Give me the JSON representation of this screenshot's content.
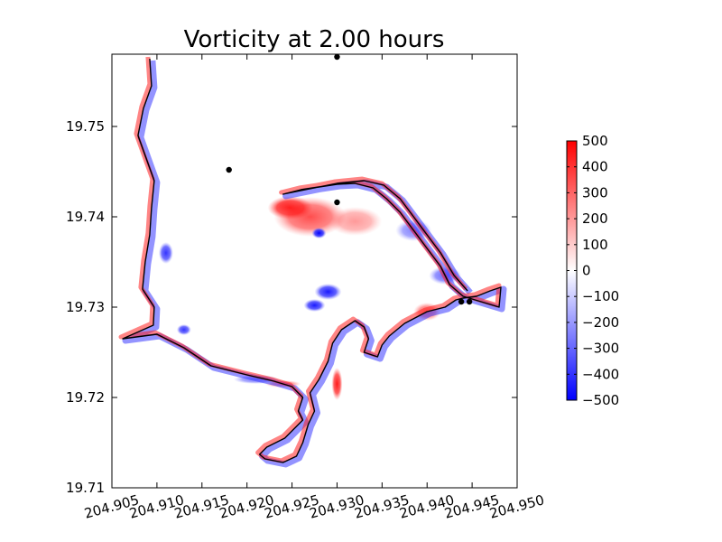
{
  "chart_data": {
    "type": "heatmap",
    "title": "Vorticity at 2.00 hours",
    "xlabel": "",
    "ylabel": "",
    "xlim": [
      204.905,
      204.95
    ],
    "ylim": [
      19.71,
      19.758
    ],
    "x_ticks": [
      204.905,
      204.91,
      204.915,
      204.92,
      204.925,
      204.93,
      204.935,
      204.94,
      204.945,
      204.95
    ],
    "x_tick_labels": [
      "204.905",
      "204.910",
      "204.915",
      "204.920",
      "204.925",
      "204.930",
      "204.935",
      "204.940",
      "204.945",
      "204.950"
    ],
    "y_ticks": [
      19.71,
      19.72,
      19.73,
      19.74,
      19.75
    ],
    "y_tick_labels": [
      "19.71",
      "19.72",
      "19.73",
      "19.74",
      "19.75"
    ],
    "grid": false,
    "colorbar": {
      "colormap": "bwr",
      "vmin": -500,
      "vmax": 500,
      "ticks": [
        500,
        400,
        300,
        200,
        100,
        0,
        -100,
        -200,
        -300,
        -400,
        -500
      ],
      "tick_labels": [
        "500",
        "400",
        "300",
        "200",
        "100",
        "0",
        "−100",
        "−200",
        "−300",
        "−400",
        "−500"
      ]
    },
    "gauge_points": [
      {
        "x": 204.93,
        "y": 19.7577
      },
      {
        "x": 204.918,
        "y": 19.7452
      },
      {
        "x": 204.93,
        "y": 19.7416
      },
      {
        "x": 204.9438,
        "y": 19.7306
      },
      {
        "x": 204.9447,
        "y": 19.7306
      }
    ],
    "shoreline": [
      [
        204.9092,
        19.7575
      ],
      [
        204.9094,
        19.7545
      ],
      [
        204.9085,
        19.752
      ],
      [
        204.9079,
        19.749
      ],
      [
        204.9088,
        19.7465
      ],
      [
        204.9097,
        19.744
      ],
      [
        204.9094,
        19.741
      ],
      [
        204.9092,
        19.738
      ],
      [
        204.9087,
        19.735
      ],
      [
        204.9084,
        19.732
      ],
      [
        204.9097,
        19.73
      ],
      [
        204.9096,
        19.728
      ],
      [
        204.9062,
        19.7265
      ],
      [
        204.91,
        19.727
      ],
      [
        204.913,
        19.7255
      ],
      [
        204.916,
        19.7235
      ],
      [
        204.92,
        19.7225
      ],
      [
        204.923,
        19.7218
      ],
      [
        204.925,
        19.7212
      ],
      [
        204.9262,
        19.72
      ],
      [
        204.9257,
        19.7185
      ],
      [
        204.9262,
        19.7175
      ],
      [
        204.9242,
        19.7155
      ],
      [
        204.9222,
        19.7145
      ],
      [
        204.9214,
        19.7137
      ],
      [
        204.922,
        19.7132
      ],
      [
        204.924,
        19.7128
      ],
      [
        204.9255,
        19.7135
      ],
      [
        204.9262,
        19.715
      ],
      [
        204.9268,
        19.717
      ],
      [
        204.9275,
        19.7185
      ],
      [
        204.927,
        19.7205
      ],
      [
        204.928,
        19.722
      ],
      [
        204.929,
        19.724
      ],
      [
        204.9295,
        19.726
      ],
      [
        204.9305,
        19.7275
      ],
      [
        204.932,
        19.7285
      ],
      [
        204.933,
        19.7278
      ],
      [
        204.9335,
        19.7265
      ],
      [
        204.933,
        19.725
      ],
      [
        204.9345,
        19.7245
      ],
      [
        204.935,
        19.7258
      ],
      [
        204.9358,
        19.7268
      ],
      [
        204.9375,
        19.7282
      ],
      [
        204.94,
        19.7295
      ],
      [
        204.942,
        19.73
      ],
      [
        204.9432,
        19.7308
      ],
      [
        204.944,
        19.731
      ],
      [
        204.9455,
        19.7312
      ],
      [
        204.947,
        19.7318
      ],
      [
        204.9482,
        19.7322
      ],
      [
        204.948,
        19.73
      ],
      [
        204.944,
        19.7312
      ],
      [
        204.9425,
        19.7325
      ],
      [
        204.9415,
        19.7345
      ],
      [
        204.94,
        19.7365
      ],
      [
        204.9385,
        19.7385
      ],
      [
        204.937,
        19.7405
      ],
      [
        204.9355,
        19.742
      ],
      [
        204.934,
        19.7432
      ],
      [
        204.932,
        19.7437
      ],
      [
        204.93,
        19.7436
      ],
      [
        204.928,
        19.7433
      ],
      [
        204.926,
        19.743
      ],
      [
        204.924,
        19.7425
      ],
      [
        204.9265,
        19.743
      ],
      [
        204.93,
        19.7437
      ],
      [
        204.933,
        19.744
      ],
      [
        204.9352,
        19.7435
      ],
      [
        204.937,
        19.742
      ],
      [
        204.9385,
        19.74
      ],
      [
        204.94,
        19.738
      ],
      [
        204.9415,
        19.736
      ],
      [
        204.943,
        19.7335
      ],
      [
        204.9445,
        19.7318
      ]
    ],
    "vorticity_features": [
      {
        "sign": "positive",
        "strength": 1.0,
        "cx": 204.9248,
        "cy": 19.741,
        "rx": 0.0025,
        "ry": 0.0013
      },
      {
        "sign": "positive",
        "strength": 0.7,
        "cx": 204.927,
        "cy": 19.74,
        "rx": 0.004,
        "ry": 0.0022
      },
      {
        "sign": "negative",
        "strength": 1.0,
        "cx": 204.928,
        "cy": 19.7382,
        "rx": 0.0008,
        "ry": 0.0006
      },
      {
        "sign": "negative",
        "strength": 0.9,
        "cx": 204.929,
        "cy": 19.7317,
        "rx": 0.0015,
        "ry": 0.0009
      },
      {
        "sign": "negative",
        "strength": 0.9,
        "cx": 204.9275,
        "cy": 19.7302,
        "rx": 0.0012,
        "ry": 0.0007
      },
      {
        "sign": "negative",
        "strength": 0.8,
        "cx": 204.911,
        "cy": 19.736,
        "rx": 0.0008,
        "ry": 0.0012
      },
      {
        "sign": "negative",
        "strength": 0.8,
        "cx": 204.913,
        "cy": 19.7275,
        "rx": 0.0008,
        "ry": 0.0006
      },
      {
        "sign": "positive",
        "strength": 0.9,
        "cx": 204.93,
        "cy": 19.7215,
        "rx": 0.0006,
        "ry": 0.0018
      },
      {
        "sign": "negative",
        "strength": 0.6,
        "cx": 204.942,
        "cy": 19.7335,
        "rx": 0.0018,
        "ry": 0.001
      },
      {
        "sign": "positive",
        "strength": 0.6,
        "cx": 204.94,
        "cy": 19.7295,
        "rx": 0.0015,
        "ry": 0.001
      },
      {
        "sign": "negative",
        "strength": 0.5,
        "cx": 204.9385,
        "cy": 19.7385,
        "rx": 0.002,
        "ry": 0.0012
      },
      {
        "sign": "positive",
        "strength": 0.4,
        "cx": 204.932,
        "cy": 19.7395,
        "rx": 0.003,
        "ry": 0.0016
      },
      {
        "sign": "negative",
        "strength": 0.5,
        "cx": 204.921,
        "cy": 19.722,
        "rx": 0.0025,
        "ry": 0.0005
      },
      {
        "sign": "positive",
        "strength": 0.5,
        "cx": 204.924,
        "cy": 19.7215,
        "rx": 0.002,
        "ry": 0.0004
      }
    ]
  }
}
